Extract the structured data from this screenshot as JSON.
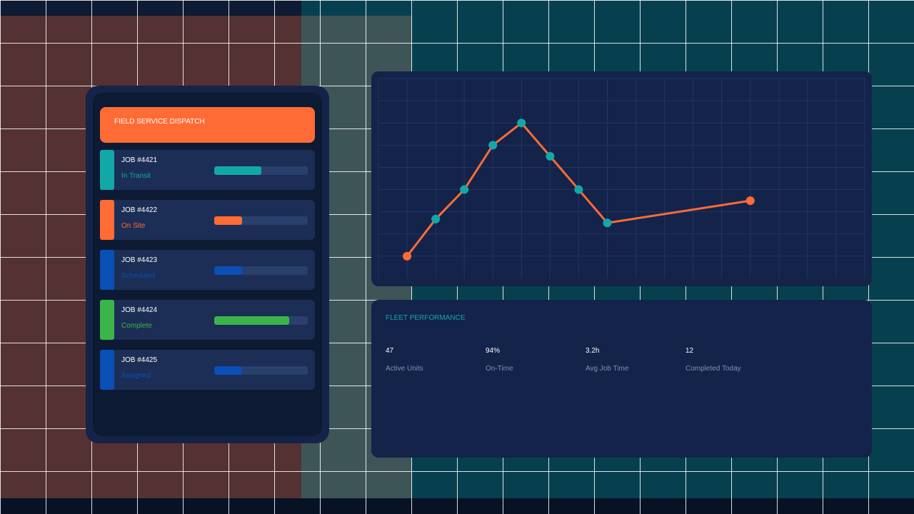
{
  "dispatch": {
    "title": "FIELD SERVICE DISPATCH",
    "jobs": [
      {
        "id": "JOB #4421",
        "status": "In Transit",
        "progress": 0.5,
        "color": "#13a8a8"
      },
      {
        "id": "JOB #4422",
        "status": "On Site",
        "progress": 0.3,
        "color": "#ff6b35"
      },
      {
        "id": "JOB #4423",
        "status": "Scheduled",
        "progress": 0.3,
        "color": "#0a4fb5"
      },
      {
        "id": "JOB #4424",
        "status": "Complete",
        "progress": 0.8,
        "color": "#3bb54a"
      },
      {
        "id": "JOB #4425",
        "status": "Assigned",
        "progress": 0.3,
        "color": "#0a4fb5"
      }
    ]
  },
  "chart_data": {
    "type": "line",
    "title": "",
    "xlabel": "",
    "ylabel": "",
    "grid": true,
    "series": [
      {
        "color": "#ff6b35",
        "marker_color": "#13a8a8",
        "endpoint_color": "#ff6b35",
        "points": [
          {
            "x": 1,
            "y": 1.0
          },
          {
            "x": 2,
            "y": 2.67
          },
          {
            "x": 3,
            "y": 4.0
          },
          {
            "x": 4,
            "y": 6.0
          },
          {
            "x": 5,
            "y": 7.0
          },
          {
            "x": 6,
            "y": 5.5
          },
          {
            "x": 7,
            "y": 4.0
          },
          {
            "x": 8,
            "y": 2.5
          },
          {
            "x": 13,
            "y": 3.5
          }
        ]
      }
    ],
    "xlim": [
      0,
      17
    ],
    "ylim": [
      0,
      9
    ]
  },
  "fleet": {
    "title": "FLEET PERFORMANCE",
    "stats": [
      {
        "value": "47",
        "label": "Active Units"
      },
      {
        "value": "94%",
        "label": "On-Time"
      },
      {
        "value": "3.2h",
        "label": "Avg Job Time"
      },
      {
        "value": "12",
        "label": "Completed Today"
      }
    ]
  }
}
